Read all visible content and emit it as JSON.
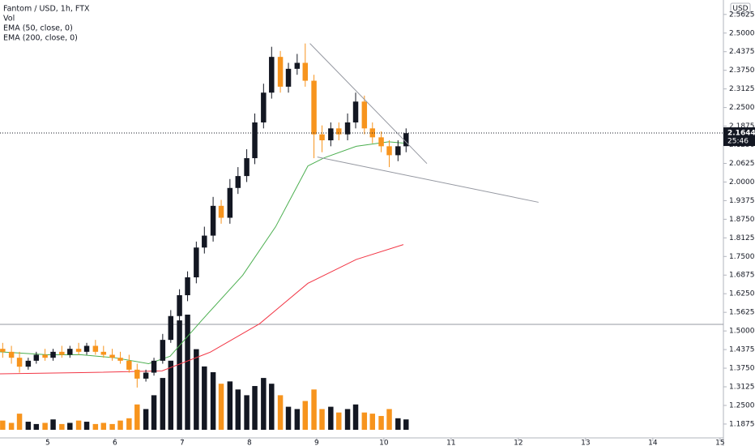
{
  "chart_data": {
    "type": "candlestick",
    "title": "Fantom / USD, 1h, FTX",
    "indicators": [
      "Vol",
      "EMA (50, close, 0)",
      "EMA (200, close, 0)"
    ],
    "currency": "USD",
    "x": [
      4.33,
      4.46,
      4.58,
      4.71,
      4.83,
      4.96,
      5.08,
      5.21,
      5.33,
      5.46,
      5.58,
      5.71,
      5.83,
      5.96,
      6.08,
      6.21,
      6.33,
      6.46,
      6.58,
      6.71,
      6.83,
      6.96,
      7.08,
      7.21,
      7.33,
      7.46,
      7.58,
      7.71,
      7.83,
      7.96,
      8.08,
      8.21,
      8.33,
      8.46,
      8.58,
      8.71,
      8.83,
      8.96,
      9.08,
      9.21,
      9.33,
      9.46,
      9.58,
      9.71,
      9.83,
      9.96,
      10.08,
      10.21,
      10.33
    ],
    "open": [
      1.44,
      1.43,
      1.41,
      1.38,
      1.4,
      1.42,
      1.41,
      1.43,
      1.42,
      1.44,
      1.43,
      1.45,
      1.43,
      1.42,
      1.41,
      1.4,
      1.37,
      1.34,
      1.36,
      1.4,
      1.47,
      1.55,
      1.62,
      1.68,
      1.78,
      1.82,
      1.92,
      1.88,
      1.98,
      2.02,
      2.08,
      2.2,
      2.3,
      2.42,
      2.32,
      2.38,
      2.4,
      2.34,
      2.16,
      2.14,
      2.18,
      2.16,
      2.2,
      2.27,
      2.18,
      2.15,
      2.12,
      2.09,
      2.12
    ],
    "high": [
      1.46,
      1.45,
      1.43,
      1.41,
      1.43,
      1.44,
      1.44,
      1.45,
      1.45,
      1.46,
      1.46,
      1.47,
      1.45,
      1.44,
      1.43,
      1.42,
      1.39,
      1.37,
      1.41,
      1.49,
      1.57,
      1.64,
      1.7,
      1.8,
      1.85,
      1.95,
      1.94,
      2.01,
      2.05,
      2.11,
      2.23,
      2.33,
      2.454,
      2.44,
      2.4,
      2.43,
      2.465,
      2.36,
      2.19,
      2.2,
      2.2,
      2.23,
      2.3,
      2.29,
      2.2,
      2.17,
      2.14,
      2.14,
      2.18
    ],
    "low": [
      1.41,
      1.39,
      1.36,
      1.37,
      1.39,
      1.4,
      1.4,
      1.41,
      1.41,
      1.42,
      1.42,
      1.42,
      1.41,
      1.4,
      1.39,
      1.36,
      1.31,
      1.33,
      1.35,
      1.39,
      1.46,
      1.53,
      1.6,
      1.66,
      1.76,
      1.8,
      1.86,
      1.86,
      1.96,
      2.0,
      2.06,
      2.18,
      2.28,
      2.3,
      2.3,
      2.36,
      2.32,
      2.08,
      2.1,
      2.12,
      2.14,
      2.14,
      2.18,
      2.16,
      2.13,
      2.1,
      2.05,
      2.07,
      2.1
    ],
    "close": [
      1.43,
      1.41,
      1.38,
      1.4,
      1.42,
      1.41,
      1.43,
      1.42,
      1.44,
      1.43,
      1.45,
      1.43,
      1.42,
      1.41,
      1.4,
      1.37,
      1.34,
      1.36,
      1.4,
      1.47,
      1.55,
      1.62,
      1.68,
      1.78,
      1.82,
      1.92,
      1.88,
      1.98,
      2.02,
      2.08,
      2.2,
      2.3,
      2.42,
      2.32,
      2.38,
      2.4,
      2.34,
      2.16,
      2.14,
      2.18,
      2.16,
      2.2,
      2.27,
      2.18,
      2.15,
      2.12,
      2.09,
      2.12,
      2.164
    ],
    "volume": [
      8,
      6,
      14,
      7,
      5,
      6,
      9,
      5,
      6,
      8,
      7,
      5,
      6,
      5,
      8,
      10,
      22,
      18,
      30,
      45,
      60,
      95,
      100,
      70,
      55,
      50,
      40,
      42,
      35,
      30,
      38,
      45,
      40,
      30,
      20,
      18,
      25,
      35,
      18,
      20,
      15,
      18,
      22,
      15,
      14,
      12,
      18,
      10,
      9
    ],
    "up_color": "#131722",
    "down_color": "#f7941d",
    "ema": [
      {
        "name": "EMA (50, close, 0)",
        "color": "#4caf50",
        "x": [
          4.29,
          5.0,
          5.5,
          6.0,
          6.5,
          6.82,
          7.3,
          7.9,
          8.39,
          8.87,
          9.11,
          9.59,
          10.07,
          10.33
        ],
        "values": [
          1.43,
          1.42,
          1.42,
          1.41,
          1.39,
          1.415,
          1.538,
          1.687,
          1.85,
          2.054,
          2.081,
          2.12,
          2.135,
          2.13
        ]
      },
      {
        "name": "EMA (200, close, 0)",
        "color": "#f23645",
        "x": [
          4.29,
          5.5,
          6.7,
          7.42,
          8.15,
          8.87,
          9.59,
          10.29
        ],
        "values": [
          1.356,
          1.36,
          1.366,
          1.429,
          1.524,
          1.66,
          1.74,
          1.79
        ]
      }
    ],
    "trendlines": [
      {
        "x": [
          8.9,
          10.64
        ],
        "y": [
          2.465,
          2.062
        ]
      },
      {
        "x": [
          9.01,
          12.3
        ],
        "y": [
          2.084,
          1.932
        ]
      }
    ],
    "hline": 1.522,
    "last_price": 2.16445,
    "countdown": "25:46",
    "xlim": [
      4.29,
      15.05
    ],
    "ylim": [
      1.141,
      2.611
    ],
    "xticks": [
      5,
      6,
      7,
      8,
      9,
      10,
      11,
      12,
      13,
      14,
      15
    ],
    "yticks": [
      {
        "value": 1.1875,
        "label": "1.18750"
      },
      {
        "value": 1.25,
        "label": "1.25000"
      },
      {
        "value": 1.3125,
        "label": "1.31250"
      },
      {
        "value": 1.375,
        "label": "1.37500"
      },
      {
        "value": 1.4375,
        "label": "1.43750"
      },
      {
        "value": 1.5,
        "label": "1.50000"
      },
      {
        "value": 1.5625,
        "label": "1.56250"
      },
      {
        "value": 1.625,
        "label": "1.62500"
      },
      {
        "value": 1.6875,
        "label": "1.68750"
      },
      {
        "value": 1.75,
        "label": "1.75000"
      },
      {
        "value": 1.8125,
        "label": "1.81250"
      },
      {
        "value": 1.875,
        "label": "1.87500"
      },
      {
        "value": 1.9375,
        "label": "1.93750"
      },
      {
        "value": 2.0,
        "label": "2.00000"
      },
      {
        "value": 2.0625,
        "label": "2.06250"
      },
      {
        "value": 2.125,
        "label": "2.12500"
      },
      {
        "value": 2.1875,
        "label": "2.18750"
      },
      {
        "value": 2.25,
        "label": "2.25000"
      },
      {
        "value": 2.3125,
        "label": "2.31250"
      },
      {
        "value": 2.375,
        "label": "2.37500"
      },
      {
        "value": 2.4375,
        "label": "2.43750"
      },
      {
        "value": 2.5,
        "label": "2.50000"
      },
      {
        "value": 2.5625,
        "label": "2.56250"
      }
    ]
  }
}
